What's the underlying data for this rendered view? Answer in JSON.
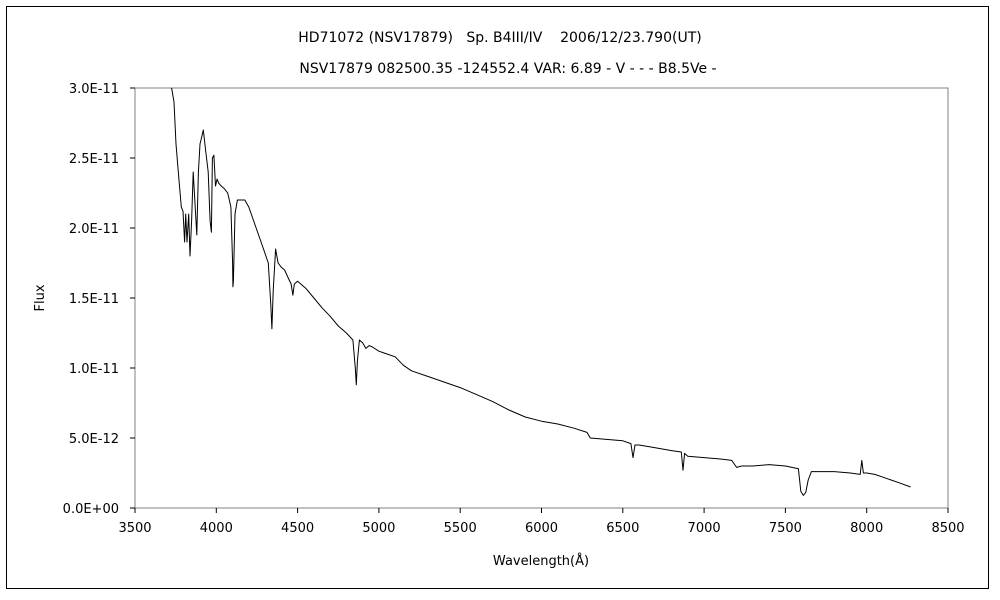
{
  "chart_data": {
    "type": "line",
    "title": "HD71072 (NSV17879)   Sp. B4III/IV    2006/12/23.790(UT)",
    "subtitle": "NSV17879 082500.35 -124552.4 VAR: 6.89 - V - - - B8.5Ve -",
    "xlabel": "Wavelength(Å)",
    "ylabel": "Flux",
    "xlim": [
      3500,
      8500
    ],
    "ylim": [
      0,
      3e-11
    ],
    "x_ticks": [
      {
        "value": 3500,
        "label": "3500"
      },
      {
        "value": 4000,
        "label": "4000"
      },
      {
        "value": 4500,
        "label": "4500"
      },
      {
        "value": 5000,
        "label": "5000"
      },
      {
        "value": 5500,
        "label": "5500"
      },
      {
        "value": 6000,
        "label": "6000"
      },
      {
        "value": 6500,
        "label": "6500"
      },
      {
        "value": 7000,
        "label": "7000"
      },
      {
        "value": 7500,
        "label": "7500"
      },
      {
        "value": 8000,
        "label": "8000"
      },
      {
        "value": 8500,
        "label": "8500"
      }
    ],
    "y_ticks": [
      {
        "value": 0,
        "label": "0.0E+00"
      },
      {
        "value": 5e-12,
        "label": "5.0E-12"
      },
      {
        "value": 1e-11,
        "label": "1.0E-11"
      },
      {
        "value": 1.5e-11,
        "label": "1.5E-11"
      },
      {
        "value": 2e-11,
        "label": "2.0E-11"
      },
      {
        "value": 2.5e-11,
        "label": "2.5E-11"
      },
      {
        "value": 3e-11,
        "label": "3.0E-11"
      }
    ],
    "grid": false,
    "legend": "none",
    "line_color": "#000000",
    "series": [
      {
        "x": [
          3725,
          3740,
          3752,
          3770,
          3785,
          3795,
          3805,
          3812,
          3820,
          3830,
          3838,
          3848,
          3858,
          3870,
          3880,
          3890,
          3900,
          3910,
          3920,
          3935,
          3950,
          3962,
          3970,
          3976,
          3985,
          3995,
          4005,
          4015,
          4030,
          4050,
          4070,
          4090,
          4100,
          4102,
          4105,
          4115,
          4130,
          4150,
          4175,
          4200,
          4230,
          4260,
          4290,
          4320,
          4335,
          4342,
          4350,
          4365,
          4380,
          4400,
          4420,
          4440,
          4460,
          4471,
          4480,
          4500,
          4550,
          4600,
          4650,
          4700,
          4750,
          4800,
          4840,
          4855,
          4861,
          4868,
          4880,
          4900,
          4920,
          4940,
          4960,
          5000,
          5050,
          5100,
          5150,
          5200,
          5300,
          5400,
          5500,
          5600,
          5700,
          5800,
          5900,
          6000,
          6100,
          6200,
          6280,
          6300,
          6400,
          6500,
          6550,
          6563,
          6575,
          6600,
          6700,
          6800,
          6860,
          6870,
          6880,
          6900,
          7000,
          7100,
          7170,
          7200,
          7230,
          7300,
          7400,
          7500,
          7580,
          7595,
          7610,
          7625,
          7640,
          7660,
          7700,
          7800,
          7900,
          7960,
          7970,
          7980,
          8000,
          8050,
          8100,
          8150,
          8200,
          8270
        ],
        "y": [
          3e-11,
          2.9e-11,
          2.6e-11,
          2.35e-11,
          2.15e-11,
          2.12e-11,
          1.9e-11,
          2.1e-11,
          1.9e-11,
          2.1e-11,
          1.8e-11,
          2.05e-11,
          2.4e-11,
          2.15e-11,
          1.95e-11,
          2.4e-11,
          2.6e-11,
          2.65e-11,
          2.7e-11,
          2.55e-11,
          2.4e-11,
          2.05e-11,
          1.97e-11,
          2.5e-11,
          2.52e-11,
          2.3e-11,
          2.35e-11,
          2.32e-11,
          2.3e-11,
          2.28e-11,
          2.25e-11,
          2.15e-11,
          1.75e-11,
          1.58e-11,
          1.62e-11,
          2.1e-11,
          2.2e-11,
          2.2e-11,
          2.2e-11,
          2.15e-11,
          2.05e-11,
          1.95e-11,
          1.85e-11,
          1.75e-11,
          1.45e-11,
          1.28e-11,
          1.55e-11,
          1.85e-11,
          1.75e-11,
          1.72e-11,
          1.7e-11,
          1.65e-11,
          1.6e-11,
          1.52e-11,
          1.6e-11,
          1.62e-11,
          1.57e-11,
          1.5e-11,
          1.43e-11,
          1.37e-11,
          1.3e-11,
          1.25e-11,
          1.2e-11,
          1e-11,
          8.8e-12,
          1.05e-11,
          1.2e-11,
          1.18e-11,
          1.14e-11,
          1.16e-11,
          1.15e-11,
          1.12e-11,
          1.1e-11,
          1.08e-11,
          1.02e-11,
          9.8e-12,
          9.4e-12,
          9e-12,
          8.6e-12,
          8.1e-12,
          7.6e-12,
          7e-12,
          6.5e-12,
          6.2e-12,
          6e-12,
          5.7e-12,
          5.4e-12,
          5e-12,
          4.9e-12,
          4.8e-12,
          4.6e-12,
          3.6e-12,
          4.5e-12,
          4.5e-12,
          4.3e-12,
          4.1e-12,
          4e-12,
          2.7e-12,
          3.9e-12,
          3.7e-12,
          3.6e-12,
          3.5e-12,
          3.4e-12,
          2.9e-12,
          3e-12,
          3e-12,
          3.1e-12,
          3e-12,
          2.8e-12,
          1.2e-12,
          9e-13,
          1.1e-12,
          2e-12,
          2.6e-12,
          2.6e-12,
          2.6e-12,
          2.5e-12,
          2.4e-12,
          3.4e-12,
          2.5e-12,
          2.5e-12,
          2.4e-12,
          2.2e-12,
          2e-12,
          1.8e-12,
          1.5e-12
        ]
      }
    ]
  }
}
